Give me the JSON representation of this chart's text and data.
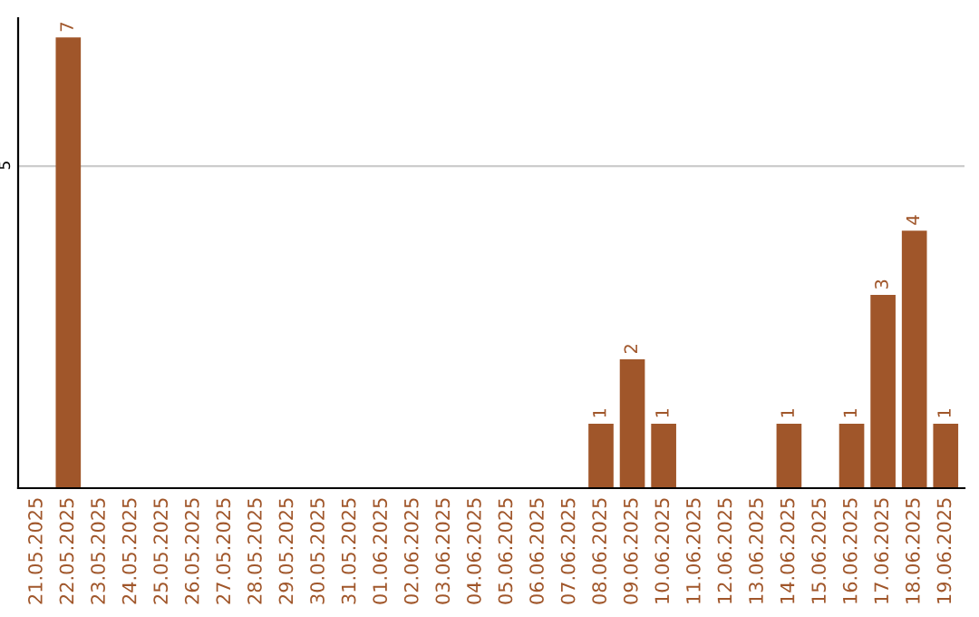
{
  "chart_data": {
    "type": "bar",
    "categories": [
      "21.05.2025",
      "22.05.2025",
      "23.05.2025",
      "24.05.2025",
      "25.05.2025",
      "26.05.2025",
      "27.05.2025",
      "28.05.2025",
      "29.05.2025",
      "30.05.2025",
      "31.05.2025",
      "01.06.2025",
      "02.06.2025",
      "03.06.2025",
      "04.06.2025",
      "05.06.2025",
      "06.06.2025",
      "07.06.2025",
      "08.06.2025",
      "09.06.2025",
      "10.06.2025",
      "11.06.2025",
      "12.06.2025",
      "13.06.2025",
      "14.06.2025",
      "15.06.2025",
      "16.06.2025",
      "17.06.2025",
      "18.06.2025",
      "19.06.2025"
    ],
    "values": [
      0,
      7,
      0,
      0,
      0,
      0,
      0,
      0,
      0,
      0,
      0,
      0,
      0,
      0,
      0,
      0,
      0,
      0,
      1,
      2,
      1,
      0,
      0,
      0,
      1,
      0,
      1,
      3,
      4,
      1
    ],
    "value_labels": [
      null,
      "7",
      null,
      null,
      null,
      null,
      null,
      null,
      null,
      null,
      null,
      null,
      null,
      null,
      null,
      null,
      null,
      null,
      "1",
      "2",
      "1",
      null,
      null,
      null,
      "1",
      null,
      "1",
      "3",
      "4",
      "1"
    ],
    "color": "#a0562a",
    "ylim": [
      0,
      7.3
    ],
    "yticks": [
      5
    ],
    "grid": "y"
  }
}
